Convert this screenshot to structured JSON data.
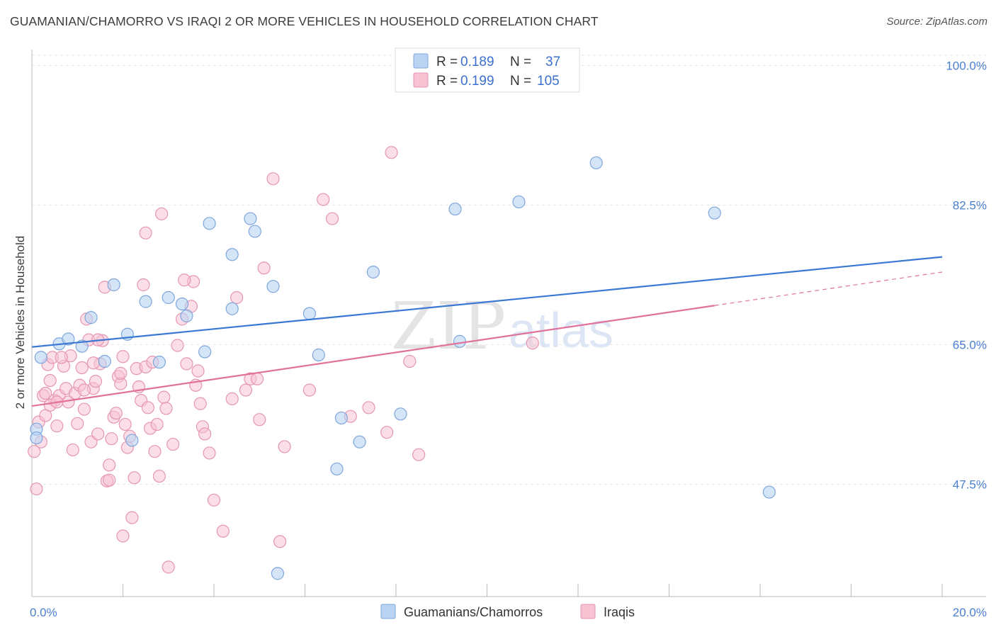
{
  "title": "GUAMANIAN/CHAMORRO VS IRAQI 2 OR MORE VEHICLES IN HOUSEHOLD CORRELATION CHART",
  "source": "Source: ZipAtlas.com",
  "watermark": {
    "zip": "ZIP",
    "atlas": "atlas"
  },
  "colors": {
    "blue": "#4a7fd0",
    "blue_fill": "#b9d3f3",
    "pink": "#e0729a",
    "pink_fill": "#f7c3d3",
    "blue_line": "#3a78d4",
    "pink_line": "#e0729a"
  },
  "legend": {
    "rows": [
      {
        "r_label": "R =",
        "r_value": "0.189",
        "n_label": "N =",
        "n_value": "37"
      },
      {
        "r_label": "R =",
        "r_value": "0.199",
        "n_label": "N =",
        "n_value": "105"
      }
    ]
  },
  "bottom_legend": [
    "Guamanians/Chamorros",
    "Iraqis"
  ],
  "chart_data": {
    "type": "scatter",
    "title": "GUAMANIAN/CHAMORRO VS IRAQI 2 OR MORE VEHICLES IN HOUSEHOLD CORRELATION CHART",
    "xlabel": "",
    "ylabel": "2 or more Vehicles in Household",
    "xlim": [
      0.0,
      20.0
    ],
    "ylim": [
      33.4,
      102.0
    ],
    "x_tick_labels": [
      "0.0%",
      "20.0%"
    ],
    "y_ticks": [
      47.5,
      65.0,
      82.5,
      100.0
    ],
    "y_tick_labels": [
      "47.5%",
      "65.0%",
      "82.5%",
      "100.0%"
    ],
    "series": [
      {
        "name": "Guamanians/Chamorros",
        "r": 0.189,
        "n": 37,
        "trend": {
          "x": [
            0.0,
            20.0
          ],
          "y": [
            64.7,
            76.0
          ]
        },
        "points": [
          [
            0.1,
            54.4
          ],
          [
            0.2,
            63.4
          ],
          [
            0.6,
            65.1
          ],
          [
            0.8,
            65.7
          ],
          [
            1.1,
            64.8
          ],
          [
            1.3,
            68.4
          ],
          [
            1.6,
            62.9
          ],
          [
            1.8,
            72.5
          ],
          [
            2.1,
            66.3
          ],
          [
            2.2,
            53.0
          ],
          [
            2.5,
            70.4
          ],
          [
            2.8,
            62.8
          ],
          [
            3.0,
            70.9
          ],
          [
            3.3,
            70.1
          ],
          [
            3.4,
            68.6
          ],
          [
            3.8,
            64.1
          ],
          [
            3.9,
            80.2
          ],
          [
            4.4,
            69.5
          ],
          [
            4.4,
            76.3
          ],
          [
            4.8,
            80.8
          ],
          [
            4.9,
            79.2
          ],
          [
            5.3,
            72.3
          ],
          [
            5.4,
            36.3
          ],
          [
            6.1,
            68.9
          ],
          [
            6.3,
            63.7
          ],
          [
            6.7,
            49.4
          ],
          [
            6.8,
            55.8
          ],
          [
            7.2,
            52.8
          ],
          [
            7.5,
            74.1
          ],
          [
            8.1,
            56.3
          ],
          [
            9.3,
            82.0
          ],
          [
            9.4,
            65.4
          ],
          [
            10.7,
            82.9
          ],
          [
            12.4,
            87.8
          ],
          [
            15.0,
            81.5
          ],
          [
            16.2,
            46.5
          ],
          [
            0.1,
            53.3
          ]
        ]
      },
      {
        "name": "Iraqis",
        "r": 0.199,
        "n": 105,
        "trend": {
          "x": [
            0.0,
            15.0
          ],
          "y": [
            57.3,
            69.9
          ]
        },
        "trend_dashed": {
          "x": [
            15.0,
            20.0
          ],
          "y": [
            69.9,
            74.1
          ]
        },
        "points": [
          [
            0.05,
            51.6
          ],
          [
            0.1,
            46.9
          ],
          [
            0.15,
            55.3
          ],
          [
            0.2,
            52.8
          ],
          [
            0.25,
            58.6
          ],
          [
            0.3,
            56.1
          ],
          [
            0.35,
            62.5
          ],
          [
            0.4,
            60.5
          ],
          [
            0.45,
            63.4
          ],
          [
            0.5,
            58.0
          ],
          [
            0.55,
            54.8
          ],
          [
            0.6,
            58.6
          ],
          [
            0.7,
            62.3
          ],
          [
            0.75,
            59.5
          ],
          [
            0.8,
            57.8
          ],
          [
            0.85,
            63.6
          ],
          [
            0.9,
            51.8
          ],
          [
            0.95,
            58.9
          ],
          [
            1.0,
            55.1
          ],
          [
            1.05,
            59.9
          ],
          [
            1.1,
            62.1
          ],
          [
            1.15,
            56.9
          ],
          [
            1.2,
            68.2
          ],
          [
            1.25,
            65.6
          ],
          [
            1.3,
            52.8
          ],
          [
            1.35,
            59.5
          ],
          [
            1.4,
            60.4
          ],
          [
            1.45,
            53.8
          ],
          [
            1.5,
            62.6
          ],
          [
            1.55,
            65.5
          ],
          [
            1.6,
            72.2
          ],
          [
            1.65,
            47.9
          ],
          [
            1.7,
            49.9
          ],
          [
            1.75,
            53.2
          ],
          [
            1.8,
            55.9
          ],
          [
            1.85,
            56.4
          ],
          [
            1.9,
            61.0
          ],
          [
            1.95,
            60.1
          ],
          [
            2.0,
            63.5
          ],
          [
            2.05,
            55.0
          ],
          [
            2.1,
            52.1
          ],
          [
            2.15,
            53.5
          ],
          [
            2.2,
            43.3
          ],
          [
            2.25,
            48.3
          ],
          [
            2.3,
            62.0
          ],
          [
            2.35,
            59.7
          ],
          [
            2.4,
            58.0
          ],
          [
            2.45,
            72.5
          ],
          [
            2.5,
            62.2
          ],
          [
            2.55,
            57.1
          ],
          [
            2.6,
            54.5
          ],
          [
            2.65,
            62.8
          ],
          [
            2.7,
            51.6
          ],
          [
            2.75,
            55.0
          ],
          [
            2.8,
            48.5
          ],
          [
            2.9,
            58.4
          ],
          [
            3.0,
            37.1
          ],
          [
            3.1,
            52.5
          ],
          [
            3.2,
            64.9
          ],
          [
            3.3,
            68.2
          ],
          [
            3.4,
            62.6
          ],
          [
            3.5,
            69.8
          ],
          [
            3.55,
            72.9
          ],
          [
            3.6,
            59.9
          ],
          [
            3.7,
            57.6
          ],
          [
            3.75,
            54.7
          ],
          [
            3.8,
            53.8
          ],
          [
            3.9,
            51.4
          ],
          [
            4.0,
            45.5
          ],
          [
            4.2,
            41.6
          ],
          [
            4.4,
            58.2
          ],
          [
            4.5,
            70.9
          ],
          [
            4.7,
            59.3
          ],
          [
            4.8,
            60.7
          ],
          [
            5.0,
            55.6
          ],
          [
            5.1,
            74.6
          ],
          [
            5.3,
            85.8
          ],
          [
            5.45,
            40.3
          ],
          [
            5.55,
            52.2
          ],
          [
            6.1,
            59.3
          ],
          [
            6.4,
            83.2
          ],
          [
            6.6,
            80.8
          ],
          [
            7.0,
            56.0
          ],
          [
            7.4,
            57.1
          ],
          [
            7.8,
            54.0
          ],
          [
            7.9,
            89.1
          ],
          [
            8.3,
            62.9
          ],
          [
            8.5,
            51.2
          ],
          [
            11.0,
            65.2
          ],
          [
            1.45,
            65.6
          ],
          [
            0.65,
            63.4
          ],
          [
            2.85,
            81.4
          ],
          [
            2.5,
            79.0
          ],
          [
            3.35,
            73.1
          ],
          [
            1.15,
            59.3
          ],
          [
            0.4,
            57.4
          ],
          [
            0.3,
            58.9
          ],
          [
            2.0,
            41.0
          ],
          [
            1.35,
            62.7
          ],
          [
            1.95,
            61.4
          ],
          [
            3.65,
            61.7
          ],
          [
            4.95,
            60.7
          ],
          [
            0.55,
            57.8
          ],
          [
            1.7,
            48.0
          ],
          [
            2.95,
            57.0
          ]
        ]
      }
    ]
  }
}
